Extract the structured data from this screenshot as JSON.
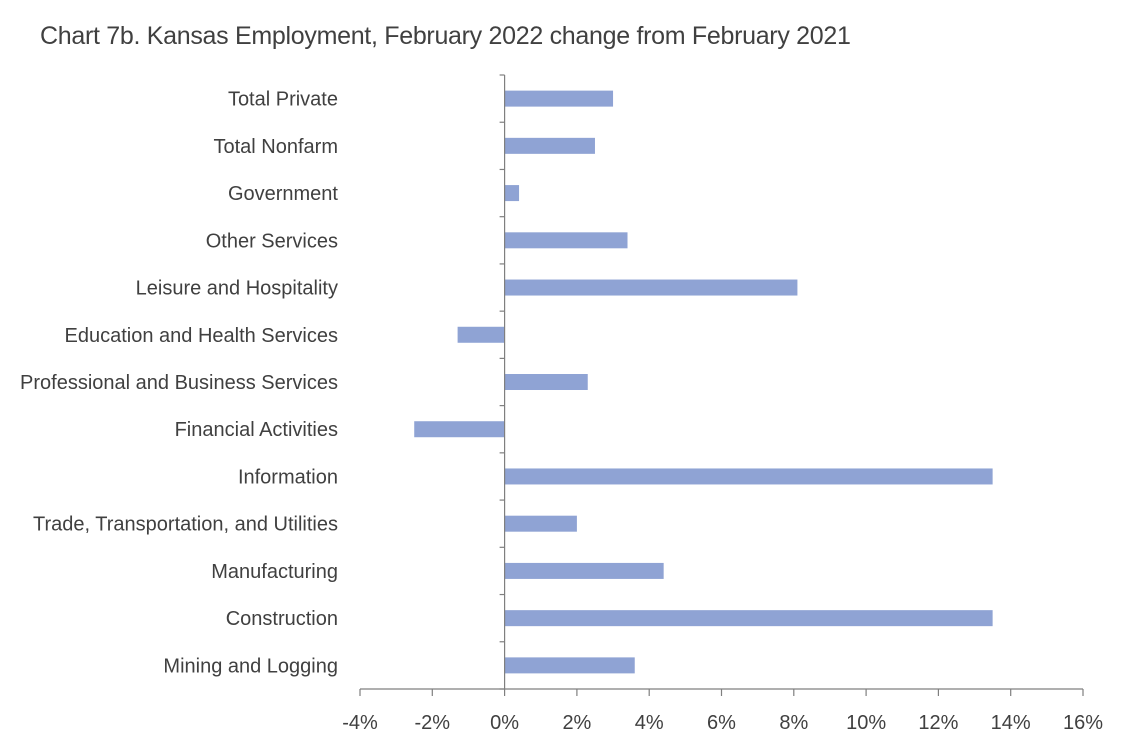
{
  "chart_data": {
    "type": "bar",
    "orientation": "horizontal",
    "title": "Chart 7b. Kansas Employment, February 2022 change from February 2021",
    "categories": [
      "Total Private",
      "Total Nonfarm",
      "Government",
      "Other Services",
      "Leisure and Hospitality",
      "Education and Health Services",
      "Professional and Business Services",
      "Financial Activities",
      "Information",
      "Trade, Transportation, and Utilities",
      "Manufacturing",
      "Construction",
      "Mining and Logging"
    ],
    "values": [
      3.0,
      2.5,
      0.4,
      3.4,
      8.1,
      -1.3,
      2.3,
      -2.5,
      13.5,
      2.0,
      4.4,
      13.5,
      3.6
    ],
    "xlim": [
      -4,
      16
    ],
    "x_ticks": [
      -4,
      -2,
      0,
      2,
      4,
      6,
      8,
      10,
      12,
      14,
      16
    ],
    "tick_suffix": "%",
    "bar_color": "#8FA3D4",
    "axis_color": "#7f7f7f",
    "grid": false,
    "legend": "none"
  }
}
